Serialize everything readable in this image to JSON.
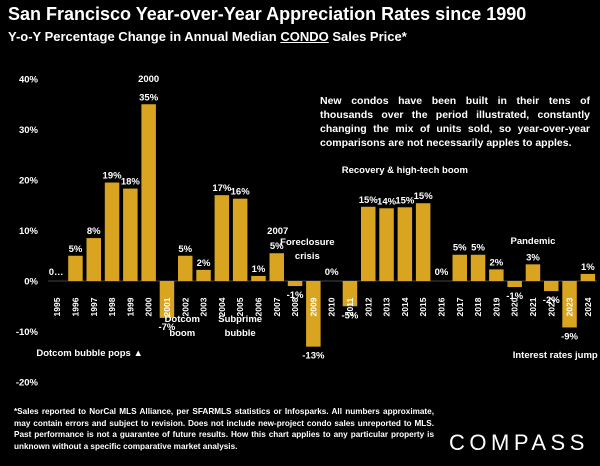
{
  "header": {
    "title": "San Francisco Year-over-Year Appreciation Rates since 1990",
    "subtitle_pre": "Y-o-Y Percentage Change in Annual Median ",
    "subtitle_em": "CONDO",
    "subtitle_post": " Sales Price*"
  },
  "note": "New condos have been built in their tens of thousands over the period illustrated, constantly changing the mix of units sold, so year-over-year comparisons are not necessarily apples to apples.",
  "footnote": "*Sales reported to NorCal MLS Alliance, per SFARMLS statistics or Infosparks. All numbers approximate, may contain errors and subject to revision. Does not include new-project condo sales unreported to MLS. Past performance is not a guarantee of future results. How this chart applies to any particular property is unknown without a specific comparative market analysis.",
  "logo": "COMPASS",
  "colors": {
    "bar": "#d9a521",
    "background": "#000000",
    "text": "#ffffff"
  },
  "chart_data": {
    "type": "bar",
    "title": "San Francisco Year-over-Year Appreciation Rates since 1990",
    "ylabel": "Y-o-Y Percentage Change",
    "ylim": [
      -20,
      40
    ],
    "yticks": [
      "40%",
      "30%",
      "20%",
      "10%",
      "0%",
      "-10%",
      "-20%"
    ],
    "ytick_values": [
      40,
      30,
      20,
      10,
      0,
      -10,
      -20
    ],
    "categories": [
      "1995",
      "1996",
      "1997",
      "1998",
      "1999",
      "2000",
      "2001",
      "2002",
      "2003",
      "2004",
      "2005",
      "2006",
      "2007",
      "2008",
      "2009",
      "2010",
      "2011",
      "2012",
      "2013",
      "2014",
      "2015",
      "2016",
      "2017",
      "2018",
      "2019",
      "2020",
      "2021",
      "2022",
      "2023",
      "2024"
    ],
    "values": [
      0,
      5,
      8.5,
      19.5,
      18.3,
      35,
      -7.3,
      5,
      2.2,
      17,
      16.3,
      1,
      5.5,
      -1,
      -13,
      0,
      -5,
      14.7,
      14.4,
      14.6,
      15.4,
      0,
      5.2,
      5.2,
      2.3,
      -1.2,
      3.3,
      -2,
      -9.2,
      1.4
    ],
    "labels": [
      "0…",
      "5%",
      "8%",
      "19%",
      "18%",
      "35%",
      "-7%",
      "5%",
      "2%",
      "17%",
      "16%",
      "1%",
      "5%",
      "-1%",
      "-13%",
      "0%",
      "-5%",
      "15%",
      "14%",
      "15%",
      "15%",
      "0%",
      "5%",
      "5%",
      "2%",
      "-1%",
      "3%",
      "-2%",
      "-9%",
      "1%"
    ],
    "annotations": [
      {
        "text": "2000",
        "year": "2000"
      },
      {
        "text": "2007",
        "year": "2007"
      },
      {
        "text": "Dotcom",
        "year": "2002"
      },
      {
        "text": "boom",
        "year": "2002"
      },
      {
        "text": "Dotcom bubble pops ▲",
        "year": "1999"
      },
      {
        "text": "Subprime",
        "year": "2005"
      },
      {
        "text": "bubble",
        "year": "2005"
      },
      {
        "text": "Foreclosure",
        "year": "2009"
      },
      {
        "text": "crisis",
        "year": "2009"
      },
      {
        "text": "Recovery & high-tech boom",
        "year": "2014"
      },
      {
        "text": "Pandemic",
        "year": "2021"
      },
      {
        "text": "Interest rates jump ▲",
        "year": "2022"
      }
    ]
  }
}
